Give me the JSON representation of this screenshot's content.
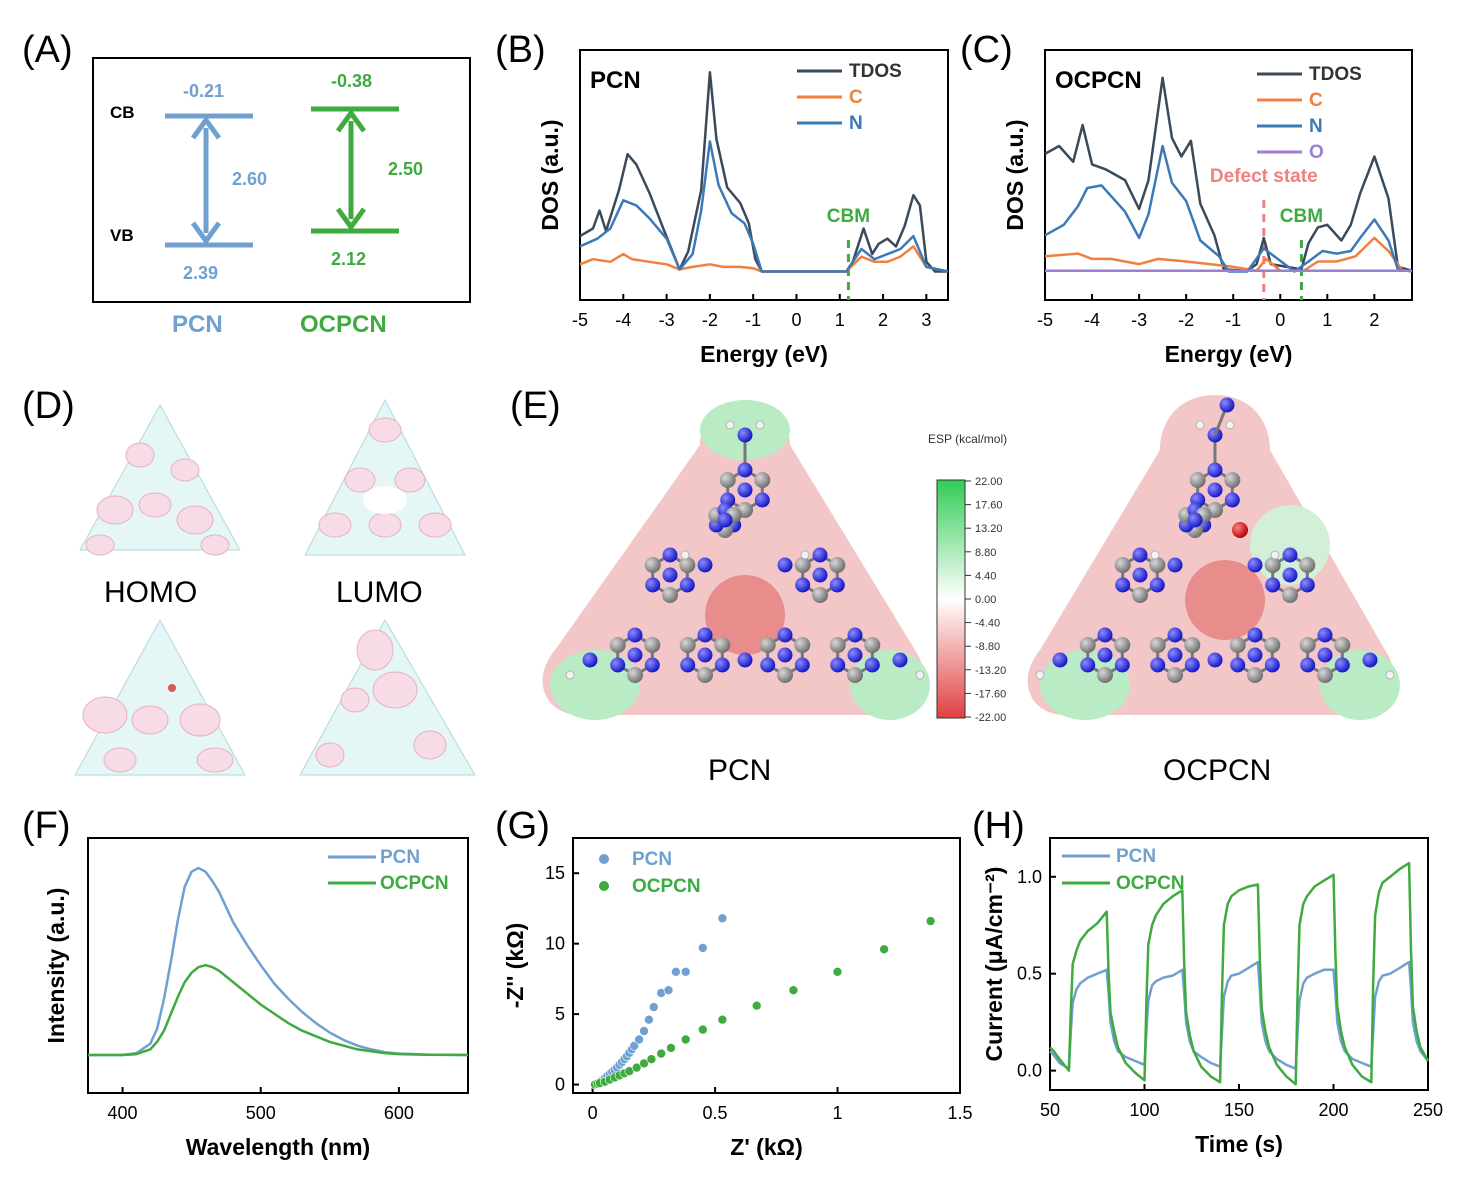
{
  "panels": {
    "A": {
      "letter": "(A)"
    },
    "B": {
      "letter": "(B)"
    },
    "C": {
      "letter": "(C)"
    },
    "D": {
      "letter": "(D)"
    },
    "E": {
      "letter": "(E)"
    },
    "F": {
      "letter": "(F)"
    },
    "G": {
      "letter": "(G)"
    },
    "H": {
      "letter": "(H)"
    }
  },
  "colors": {
    "pcn": "#6fa0d0",
    "ocpcn": "#3faa3f",
    "tdos": "#3a4a5a",
    "c": "#f08040",
    "n": "#3a7ab8",
    "o": "#9b7fd0",
    "defect": "#f08080",
    "cbm": "#3faa3f",
    "esp_pos": "#33cc55",
    "esp_neg": "#e04040"
  },
  "molecules": {
    "homo_label": "HOMO",
    "lumo_label": "LUMO",
    "pcn_label": "PCN",
    "ocpcn_label": "OCPCN",
    "esp_title": "ESP (kcal/mol)",
    "esp_ticks": [
      "22.00",
      "17.60",
      "13.20",
      "8.80",
      "4.40",
      "0.00",
      "-4.40",
      "-8.80",
      "-13.20",
      "-17.60",
      "-22.00"
    ]
  },
  "chart_data": [
    {
      "panel": "A",
      "type": "band-diagram",
      "labels": {
        "cb": "CB",
        "vb": "VB"
      },
      "materials": [
        {
          "name": "PCN",
          "cb": -0.21,
          "vb": 2.39,
          "gap": 2.6,
          "cb_text": "-0.21",
          "vb_text": "2.39",
          "gap_text": "2.60"
        },
        {
          "name": "OCPCN",
          "cb": -0.38,
          "vb": 2.12,
          "gap": 2.5,
          "cb_text": "-0.38",
          "vb_text": "2.12",
          "gap_text": "2.50"
        }
      ]
    },
    {
      "panel": "B",
      "type": "line",
      "inset_title": "PCN",
      "xlabel": "Energy (eV)",
      "ylabel": "DOS (a.u.)",
      "xlim": [
        -5,
        3.5
      ],
      "xticks": [
        -5,
        -4,
        -3,
        -2,
        -1,
        0,
        1,
        2,
        3
      ],
      "markers": [
        {
          "label": "CBM",
          "x": 1.2
        }
      ],
      "series": [
        {
          "name": "TDOS",
          "x": [
            -5,
            -4.7,
            -4.55,
            -4.4,
            -4.1,
            -3.9,
            -3.7,
            -3.4,
            -3.1,
            -2.7,
            -2.5,
            -2.2,
            -2.0,
            -1.85,
            -1.6,
            -1.3,
            -1.1,
            -0.95,
            -0.8,
            1.15,
            1.3,
            1.55,
            1.75,
            1.9,
            2.1,
            2.3,
            2.5,
            2.7,
            2.85,
            3.0,
            3.2,
            3.5
          ],
          "y": [
            1.4,
            1.7,
            2.4,
            1.6,
            3.2,
            4.6,
            4.2,
            3.1,
            1.8,
            0.1,
            0.8,
            3.2,
            7.8,
            5.2,
            3.3,
            2.7,
            1.9,
            0.5,
            0.02,
            0.02,
            0.4,
            1.7,
            0.7,
            1.1,
            1.3,
            1.0,
            1.8,
            3.0,
            2.6,
            0.4,
            0.02,
            0.02
          ]
        },
        {
          "name": "C",
          "x": [
            -5,
            -4.7,
            -4.3,
            -4.0,
            -3.8,
            -3.4,
            -3.0,
            -2.7,
            -2.4,
            -2.0,
            -1.7,
            -1.3,
            -1.0,
            -0.8,
            1.15,
            1.5,
            1.8,
            2.1,
            2.4,
            2.7,
            3.0,
            3.5
          ],
          "y": [
            0.3,
            0.5,
            0.4,
            0.7,
            0.5,
            0.4,
            0.3,
            0.1,
            0.2,
            0.3,
            0.2,
            0.2,
            0.15,
            0.02,
            0.02,
            0.6,
            0.4,
            0.4,
            0.6,
            1.0,
            0.2,
            0.02
          ]
        },
        {
          "name": "N",
          "x": [
            -5,
            -4.6,
            -4.3,
            -4.0,
            -3.7,
            -3.4,
            -3.0,
            -2.7,
            -2.4,
            -2.2,
            -2.0,
            -1.8,
            -1.5,
            -1.2,
            -1.0,
            -0.8,
            1.15,
            1.5,
            1.8,
            2.1,
            2.4,
            2.7,
            3.0,
            3.5
          ],
          "y": [
            1.0,
            1.3,
            1.7,
            2.8,
            2.6,
            2.1,
            1.3,
            0.1,
            0.7,
            2.4,
            5.1,
            3.4,
            2.3,
            1.9,
            1.1,
            0.02,
            0.02,
            0.9,
            0.5,
            0.7,
            0.9,
            1.4,
            0.2,
            0.02
          ]
        }
      ]
    },
    {
      "panel": "C",
      "type": "line",
      "inset_title": "OCPCN",
      "xlabel": "Energy (eV)",
      "ylabel": "DOS (a.u.)",
      "xlim": [
        -5,
        2.8
      ],
      "xticks": [
        -5,
        -4,
        -3,
        -2,
        -1,
        0,
        1,
        2
      ],
      "markers": [
        {
          "label": "Defect state",
          "x": -0.35
        },
        {
          "label": "CBM",
          "x": 0.45
        }
      ],
      "series": [
        {
          "name": "TDOS",
          "x": [
            -5,
            -4.7,
            -4.4,
            -4.2,
            -4.0,
            -3.7,
            -3.3,
            -3.0,
            -2.8,
            -2.5,
            -2.3,
            -2.1,
            -1.9,
            -1.7,
            -1.4,
            -1.2,
            -0.7,
            -0.5,
            -0.35,
            -0.2,
            0.45,
            0.6,
            0.8,
            1.0,
            1.3,
            1.5,
            1.7,
            2.0,
            2.3,
            2.5,
            2.8
          ],
          "y": [
            4.5,
            4.8,
            4.2,
            5.6,
            4.1,
            3.9,
            3.5,
            2.4,
            3.5,
            7.4,
            5.1,
            4.4,
            5.0,
            2.6,
            1.4,
            0.1,
            0.05,
            0.3,
            1.3,
            0.3,
            0.1,
            1.1,
            1.7,
            1.8,
            1.2,
            1.8,
            3.0,
            4.4,
            2.8,
            0.2,
            0.05
          ]
        },
        {
          "name": "C",
          "x": [
            -5,
            -4.3,
            -4.0,
            -3.6,
            -3.0,
            -2.6,
            -2.0,
            -1.5,
            -1.0,
            -0.5,
            -0.3,
            0,
            0.5,
            0.8,
            1.2,
            1.6,
            2.0,
            2.3,
            2.6,
            2.8
          ],
          "y": [
            0.6,
            0.7,
            0.5,
            0.5,
            0.3,
            0.5,
            0.4,
            0.3,
            0.2,
            0.05,
            0.5,
            0.05,
            0.05,
            0.4,
            0.4,
            0.6,
            1.3,
            0.8,
            0.05,
            0.05
          ]
        },
        {
          "name": "N",
          "x": [
            -5,
            -4.6,
            -4.3,
            -4.1,
            -3.8,
            -3.3,
            -3.0,
            -2.8,
            -2.5,
            -2.3,
            -2.0,
            -1.7,
            -1.3,
            -1.1,
            -0.7,
            -0.35,
            0.3,
            0.6,
            0.9,
            1.2,
            1.5,
            1.7,
            2.0,
            2.3,
            2.5,
            2.8
          ],
          "y": [
            1.4,
            1.8,
            2.5,
            3.2,
            3.3,
            2.3,
            1.3,
            2.2,
            4.8,
            3.4,
            2.7,
            1.2,
            0.6,
            0.02,
            0.02,
            0.9,
            0.02,
            0.4,
            0.8,
            0.7,
            0.8,
            1.3,
            2.0,
            1.2,
            0.1,
            0.02
          ]
        },
        {
          "name": "O",
          "x": [
            -5,
            -3,
            -1,
            0,
            1,
            2,
            2.8
          ],
          "y": [
            0.05,
            0.05,
            0.05,
            0.05,
            0.05,
            0.05,
            0.05
          ]
        }
      ]
    },
    {
      "panel": "F",
      "type": "line",
      "xlabel": "Wavelength (nm)",
      "ylabel": "Intensity (a.u.)",
      "xlim": [
        375,
        650
      ],
      "xticks": [
        400,
        500,
        600
      ],
      "series": [
        {
          "name": "PCN",
          "x": [
            375,
            400,
            410,
            420,
            425,
            430,
            435,
            440,
            445,
            450,
            455,
            460,
            465,
            470,
            475,
            480,
            490,
            500,
            510,
            520,
            530,
            540,
            550,
            560,
            570,
            580,
            590,
            600,
            620,
            650
          ],
          "y": [
            0,
            0,
            0.01,
            0.06,
            0.14,
            0.3,
            0.5,
            0.72,
            0.9,
            0.98,
            1.0,
            0.98,
            0.93,
            0.87,
            0.79,
            0.71,
            0.59,
            0.48,
            0.38,
            0.3,
            0.23,
            0.17,
            0.12,
            0.08,
            0.05,
            0.03,
            0.015,
            0.008,
            0.002,
            0
          ]
        },
        {
          "name": "OCPCN",
          "x": [
            375,
            400,
            410,
            420,
            425,
            430,
            435,
            440,
            445,
            450,
            455,
            460,
            465,
            470,
            475,
            480,
            490,
            500,
            510,
            520,
            530,
            540,
            550,
            560,
            570,
            580,
            590,
            600,
            620,
            650
          ],
          "y": [
            0,
            0,
            0.005,
            0.03,
            0.07,
            0.13,
            0.22,
            0.31,
            0.39,
            0.44,
            0.47,
            0.48,
            0.47,
            0.45,
            0.42,
            0.39,
            0.33,
            0.27,
            0.22,
            0.17,
            0.13,
            0.1,
            0.07,
            0.05,
            0.03,
            0.02,
            0.01,
            0.005,
            0.001,
            0
          ]
        }
      ]
    },
    {
      "panel": "G",
      "type": "scatter",
      "xlabel": "Z' (kΩ)",
      "ylabel": "-Z'' (kΩ)",
      "xlim": [
        -0.08,
        1.5
      ],
      "ylim": [
        -0.6,
        17.5
      ],
      "xticks": [
        0.0,
        0.5,
        1.0,
        1.5
      ],
      "yticks": [
        0,
        5,
        10,
        15
      ],
      "series": [
        {
          "name": "PCN",
          "x": [
            0.01,
            0.02,
            0.03,
            0.04,
            0.05,
            0.06,
            0.07,
            0.08,
            0.09,
            0.1,
            0.11,
            0.12,
            0.13,
            0.14,
            0.15,
            0.16,
            0.17,
            0.19,
            0.21,
            0.23,
            0.25,
            0.28,
            0.31,
            0.34,
            0.38,
            0.45,
            0.53
          ],
          "y": [
            0,
            0.1,
            0.2,
            0.3,
            0.45,
            0.6,
            0.75,
            0.9,
            1.05,
            1.2,
            1.4,
            1.6,
            1.8,
            2.0,
            2.25,
            2.5,
            2.75,
            3.2,
            3.8,
            4.6,
            5.5,
            6.5,
            6.7,
            8.0,
            8.0,
            9.7,
            11.8
          ]
        },
        {
          "name": "OCPCN",
          "x": [
            0.01,
            0.02,
            0.03,
            0.05,
            0.07,
            0.09,
            0.11,
            0.13,
            0.15,
            0.18,
            0.21,
            0.24,
            0.28,
            0.32,
            0.38,
            0.45,
            0.53,
            0.67,
            0.82,
            1.0,
            1.19,
            1.38
          ],
          "y": [
            0,
            0.05,
            0.1,
            0.2,
            0.35,
            0.5,
            0.65,
            0.8,
            0.95,
            1.2,
            1.5,
            1.8,
            2.2,
            2.6,
            3.2,
            3.9,
            4.6,
            5.6,
            6.7,
            8.0,
            9.6,
            11.6
          ]
        }
      ]
    },
    {
      "panel": "H",
      "type": "line",
      "xlabel": "Time (s)",
      "ylabel": "Current (μA/cm⁻²)",
      "xlim": [
        50,
        250
      ],
      "ylim": [
        -0.1,
        1.2
      ],
      "xticks": [
        50,
        100,
        150,
        200,
        250
      ],
      "yticks": [
        0.0,
        0.5,
        1.0
      ],
      "series": [
        {
          "name": "PCN",
          "x": [
            50,
            52,
            55,
            60,
            61,
            62,
            64,
            66,
            70,
            75,
            80,
            81,
            82,
            84,
            86,
            90,
            95,
            100,
            101,
            102,
            104,
            106,
            110,
            115,
            120,
            121,
            122,
            124,
            126,
            130,
            135,
            140,
            141,
            142,
            144,
            146,
            150,
            155,
            160,
            161,
            162,
            164,
            166,
            170,
            175,
            180,
            181,
            182,
            184,
            186,
            190,
            195,
            200,
            201,
            202,
            204,
            206,
            210,
            215,
            220,
            221,
            222,
            224,
            226,
            230,
            235,
            240,
            241,
            242,
            244,
            246,
            250
          ],
          "y": [
            0.1,
            0.08,
            0.04,
            0.01,
            0.2,
            0.35,
            0.42,
            0.45,
            0.48,
            0.5,
            0.52,
            0.4,
            0.25,
            0.15,
            0.1,
            0.07,
            0.05,
            0.03,
            0.2,
            0.36,
            0.44,
            0.46,
            0.48,
            0.49,
            0.52,
            0.4,
            0.25,
            0.15,
            0.1,
            0.07,
            0.04,
            0.02,
            0.2,
            0.38,
            0.46,
            0.49,
            0.5,
            0.53,
            0.56,
            0.42,
            0.25,
            0.15,
            0.1,
            0.06,
            0.03,
            0.01,
            0.2,
            0.36,
            0.45,
            0.48,
            0.5,
            0.52,
            0.52,
            0.4,
            0.25,
            0.15,
            0.1,
            0.06,
            0.04,
            0.02,
            0.2,
            0.38,
            0.46,
            0.49,
            0.5,
            0.53,
            0.56,
            0.42,
            0.25,
            0.15,
            0.1,
            0.05
          ]
        },
        {
          "name": "OCPCN",
          "x": [
            50,
            52,
            55,
            60,
            61,
            62,
            64,
            66,
            70,
            75,
            80,
            81,
            82,
            84,
            86,
            90,
            95,
            100,
            101,
            102,
            104,
            106,
            110,
            115,
            120,
            121,
            122,
            124,
            126,
            130,
            135,
            140,
            141,
            142,
            144,
            146,
            150,
            155,
            160,
            161,
            162,
            164,
            166,
            170,
            175,
            180,
            181,
            182,
            184,
            186,
            190,
            195,
            200,
            201,
            202,
            204,
            206,
            210,
            215,
            220,
            221,
            222,
            224,
            226,
            230,
            235,
            240,
            241,
            242,
            244,
            246,
            250
          ],
          "y": [
            0.12,
            0.1,
            0.06,
            0.0,
            0.3,
            0.55,
            0.62,
            0.67,
            0.72,
            0.76,
            0.82,
            0.5,
            0.3,
            0.2,
            0.12,
            0.04,
            -0.01,
            -0.05,
            0.35,
            0.65,
            0.75,
            0.8,
            0.86,
            0.9,
            0.93,
            0.55,
            0.3,
            0.18,
            0.1,
            0.02,
            -0.03,
            -0.06,
            0.4,
            0.75,
            0.86,
            0.9,
            0.93,
            0.95,
            0.96,
            0.58,
            0.32,
            0.2,
            0.12,
            0.03,
            -0.03,
            -0.07,
            0.4,
            0.75,
            0.86,
            0.9,
            0.95,
            0.98,
            1.01,
            0.6,
            0.33,
            0.2,
            0.12,
            0.03,
            -0.03,
            -0.06,
            0.45,
            0.8,
            0.92,
            0.97,
            1.0,
            1.04,
            1.07,
            0.62,
            0.33,
            0.2,
            0.12,
            0.05
          ]
        }
      ]
    }
  ]
}
